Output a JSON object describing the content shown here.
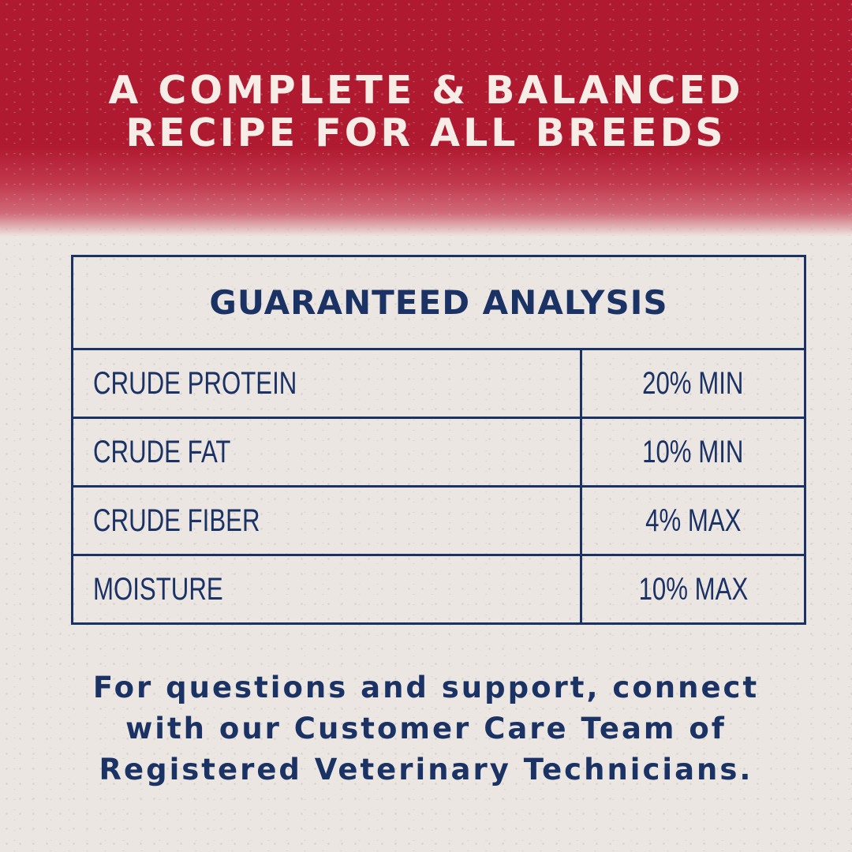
{
  "colors": {
    "banner": "#b01a30",
    "navy": "#1b3264",
    "background": "#ece6e2",
    "headline": "#f6ede6"
  },
  "headline": [
    "A COMPLETE & BALANCED",
    "RECIPE FOR ALL BREEDS"
  ],
  "analysis": {
    "title": "GUARANTEED ANALYSIS",
    "rows": [
      {
        "label": "CRUDE PROTEIN",
        "value": "20% MIN"
      },
      {
        "label": "CRUDE FAT",
        "value": "10% MIN"
      },
      {
        "label": "CRUDE FIBER",
        "value": "4% MAX"
      },
      {
        "label": "MOISTURE",
        "value": "10% MAX"
      }
    ]
  },
  "footer": [
    "For questions and support, connect",
    "with our Customer Care Team of",
    "Registered Veterinary Technicians."
  ]
}
